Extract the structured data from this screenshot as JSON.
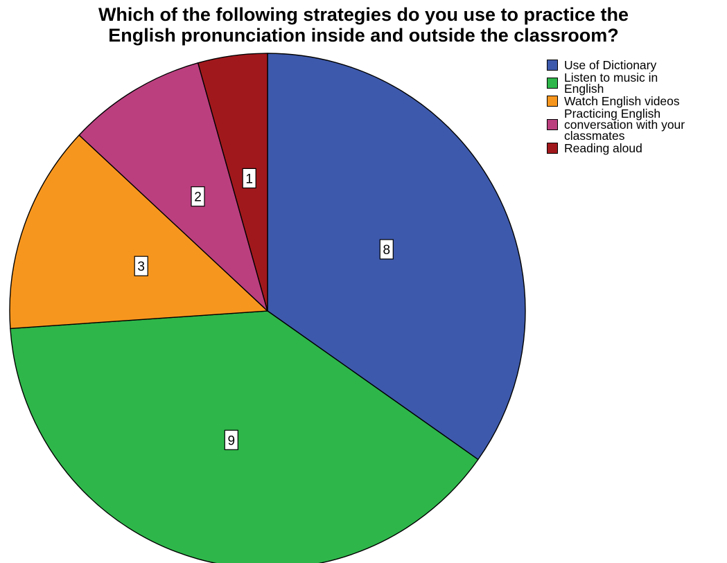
{
  "chart_data": {
    "type": "pie",
    "title_lines": [
      "Which of the following strategies do you use to practice the",
      "English pronunciation inside and outside the classroom?"
    ],
    "slices": [
      {
        "label": "Use of Dictionary",
        "value": 8,
        "color": "#3d59ab"
      },
      {
        "label": "Listen to music in English",
        "label_lines": [
          "Listen to music in",
          "English"
        ],
        "value": 9,
        "color": "#2eb64a"
      },
      {
        "label": "Watch English videos",
        "value": 3,
        "color": "#f7961e"
      },
      {
        "label": "Practicing English conversation with your classmates",
        "label_lines": [
          "Practicing English",
          "conversation with your",
          "classmates"
        ],
        "value": 2,
        "color": "#bb3f7f"
      },
      {
        "label": "Reading aloud",
        "value": 1,
        "color": "#a1181c"
      }
    ],
    "start": "12 o'clock",
    "direction": "clockwise",
    "data_labels": "values",
    "legend_position": "right"
  }
}
